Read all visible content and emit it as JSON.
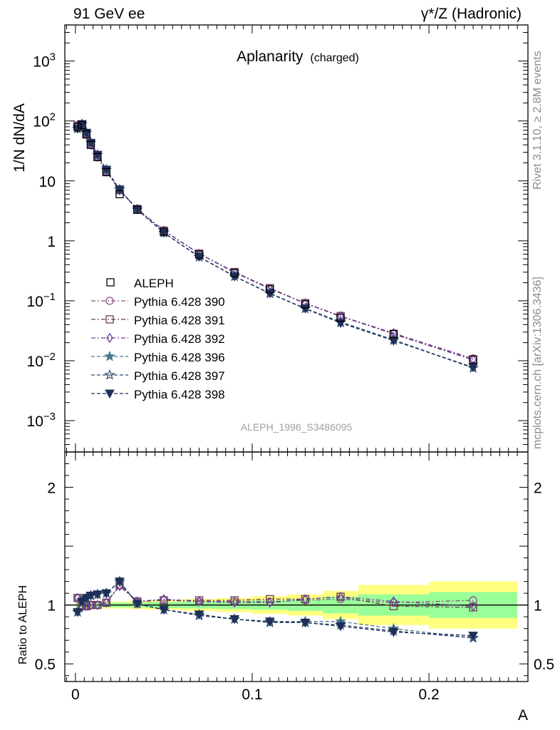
{
  "header": {
    "left": "91 GeV ee",
    "right": "γ*/Z (Hadronic)"
  },
  "side_labels": {
    "rivet": "Rivet 3.1.10, ≥ 2.8M events",
    "mcplots": "mcplots.cern.ch [arXiv:1306.3436]"
  },
  "chart_data": {
    "type": "line",
    "title": "Aplanarity",
    "title_suffix": "(charged)",
    "watermark": "ALEPH_1996_S3486095",
    "xlabel": "A",
    "ylabel": "1/N dN/dA",
    "ratio_ylabel": "Ratio to ALEPH",
    "xlim": [
      -0.006,
      0.256
    ],
    "ylim": [
      0.0003,
      4000
    ],
    "ylog": true,
    "ratio_ylim": [
      0.35,
      2.3
    ],
    "x_ticks": [
      {
        "value": 0,
        "label": "0"
      },
      {
        "value": 0.1,
        "label": "0.1"
      },
      {
        "value": 0.2,
        "label": "0.2"
      }
    ],
    "y_ticks": [
      {
        "value": 1000,
        "base": "10",
        "exp": "3"
      },
      {
        "value": 100,
        "base": "10",
        "exp": "2"
      },
      {
        "value": 10,
        "base": "10",
        "exp": ""
      },
      {
        "value": 1,
        "base": "1",
        "exp": ""
      },
      {
        "value": 0.1,
        "base": "10",
        "exp": "−1"
      },
      {
        "value": 0.01,
        "base": "10",
        "exp": "−2"
      },
      {
        "value": 0.001,
        "base": "10",
        "exp": "−3"
      }
    ],
    "ratio_ticks": [
      {
        "value": 0.5,
        "label": "0.5"
      },
      {
        "value": 1,
        "label": "1"
      },
      {
        "value": 2,
        "label": "2"
      }
    ],
    "x": [
      0.0012,
      0.0037,
      0.0062,
      0.0087,
      0.0125,
      0.0175,
      0.025,
      0.035,
      0.05,
      0.07,
      0.09,
      0.11,
      0.13,
      0.15,
      0.18,
      0.225
    ],
    "x_edges": [
      0,
      0.0025,
      0.005,
      0.0075,
      0.01,
      0.015,
      0.02,
      0.03,
      0.04,
      0.06,
      0.08,
      0.1,
      0.12,
      0.14,
      0.16,
      0.2,
      0.25
    ],
    "reference": {
      "name": "ALEPH",
      "values": [
        79,
        86,
        60,
        40,
        25,
        14,
        6.0,
        3.3,
        1.42,
        0.59,
        0.29,
        0.155,
        0.087,
        0.052,
        0.028,
        0.0105
      ],
      "band_stat": [
        0.02,
        0.02,
        0.02,
        0.02,
        0.02,
        0.02,
        0.02,
        0.02,
        0.025,
        0.03,
        0.035,
        0.04,
        0.05,
        0.07,
        0.09,
        0.11
      ],
      "band_total": [
        0.03,
        0.03,
        0.03,
        0.03,
        0.03,
        0.03,
        0.03,
        0.035,
        0.04,
        0.05,
        0.06,
        0.075,
        0.09,
        0.12,
        0.17,
        0.2
      ]
    },
    "legend_position": "middle-left",
    "series": [
      {
        "name": "Pythia 6.428 390",
        "color": "#8c4f8a",
        "marker": "circle-open",
        "dash": "6,3,2,3",
        "ratio": [
          1.06,
          0.99,
          0.99,
          1.0,
          1.0,
          1.02,
          1.17,
          1.03,
          1.04,
          1.03,
          1.03,
          1.03,
          1.04,
          1.05,
          1.02,
          1.04
        ]
      },
      {
        "name": "Pythia 6.428 391",
        "color": "#6b3a4e",
        "marker": "square-open",
        "dash": "6,3,2,3",
        "ratio": [
          1.06,
          0.99,
          0.99,
          1.0,
          1.0,
          1.02,
          1.17,
          1.03,
          1.04,
          1.04,
          1.04,
          1.05,
          1.05,
          1.07,
          0.99,
          0.98
        ]
      },
      {
        "name": "Pythia 6.428 392",
        "color": "#6a3d9a",
        "marker": "diamond-open",
        "dash": "6,3,2,3",
        "ratio": [
          1.06,
          0.98,
          0.99,
          1.0,
          1.0,
          1.02,
          1.16,
          1.03,
          1.05,
          1.03,
          1.02,
          1.02,
          1.05,
          1.07,
          1.03,
          0.99
        ]
      },
      {
        "name": "Pythia 6.428 396",
        "color": "#4a7a8c",
        "marker": "star-filled",
        "dash": "5,3",
        "ratio": [
          0.94,
          1.03,
          1.06,
          1.08,
          1.09,
          1.1,
          1.2,
          1.01,
          0.96,
          0.92,
          0.88,
          0.86,
          0.86,
          0.86,
          0.8,
          0.72
        ]
      },
      {
        "name": "Pythia 6.428 397",
        "color": "#2f4a70",
        "marker": "star-open",
        "dash": "5,3",
        "ratio": [
          0.94,
          1.03,
          1.06,
          1.08,
          1.09,
          1.1,
          1.2,
          1.01,
          0.96,
          0.91,
          0.88,
          0.85,
          0.85,
          0.83,
          0.78,
          0.72
        ]
      },
      {
        "name": "Pythia 6.428 398",
        "color": "#1f2f58",
        "marker": "triangle-down-filled",
        "dash": "5,3",
        "ratio": [
          0.94,
          1.03,
          1.06,
          1.08,
          1.09,
          1.1,
          1.2,
          1.01,
          0.96,
          0.92,
          0.88,
          0.86,
          0.85,
          0.82,
          0.77,
          0.74
        ]
      }
    ],
    "colors": {
      "band_outer": "#ffff80",
      "band_inner": "#99ff99",
      "watermark": "#a0a0a0"
    }
  }
}
